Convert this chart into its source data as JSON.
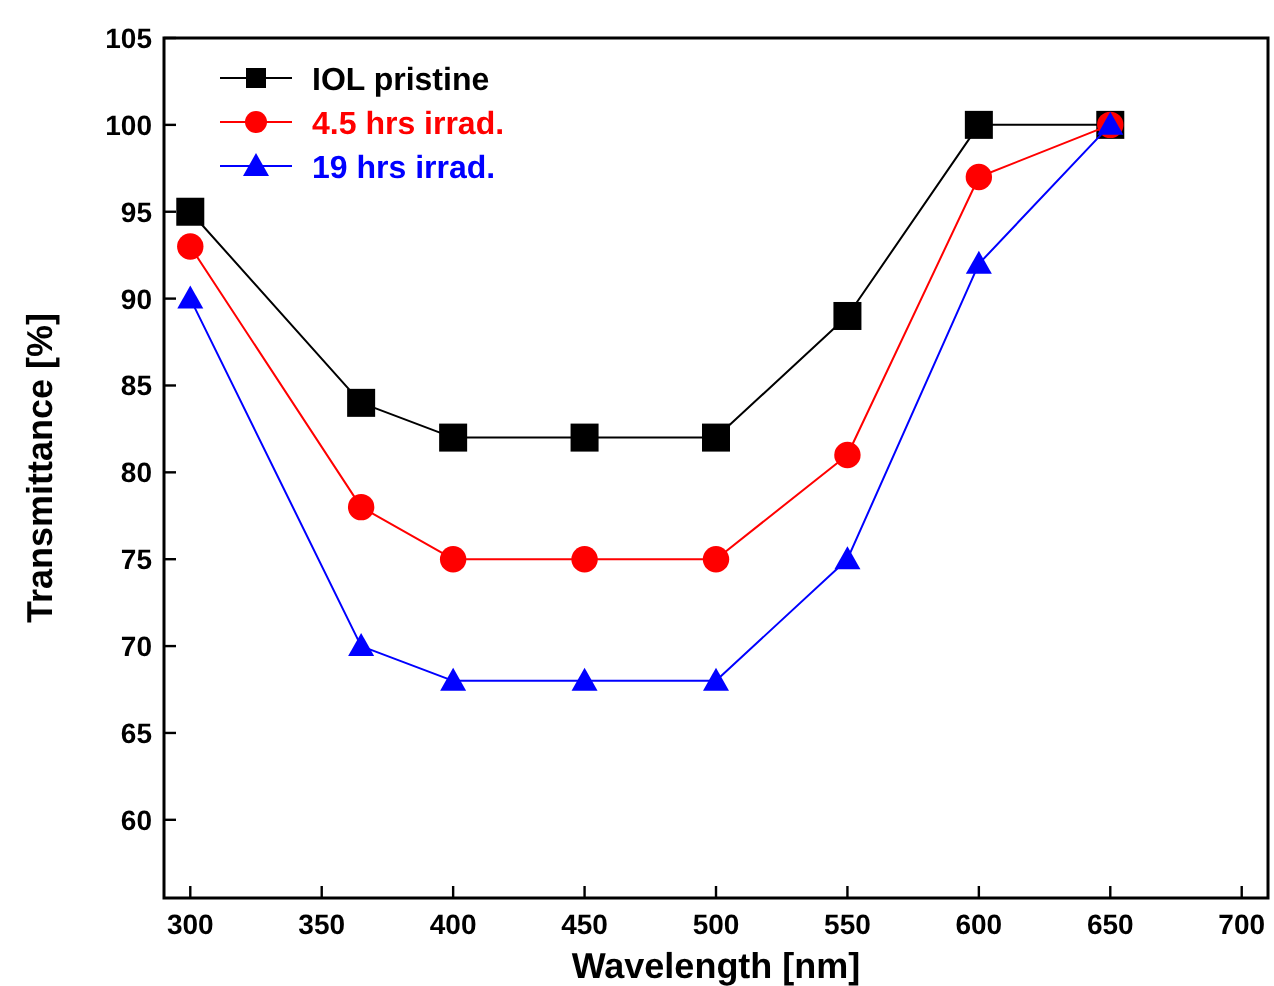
{
  "chart_data": {
    "type": "line",
    "xlabel": "Wavelength [nm]",
    "ylabel": "Transmittance [%]",
    "x": [
      300,
      365,
      400,
      450,
      500,
      550,
      600,
      650
    ],
    "series": [
      {
        "name": "IOL pristine",
        "color": "#000000",
        "marker": "square",
        "values": [
          95,
          84,
          82,
          82,
          82,
          89,
          100,
          100
        ]
      },
      {
        "name": "4.5 hrs irrad.",
        "color": "#ff0000",
        "marker": "circle",
        "values": [
          93,
          78,
          75,
          75,
          75,
          81,
          97,
          100
        ]
      },
      {
        "name": "19 hrs irrad.",
        "color": "#0000ff",
        "marker": "triangle",
        "values": [
          90,
          70,
          68,
          68,
          68,
          75,
          92,
          100
        ]
      }
    ],
    "xlim": [
      290,
      710
    ],
    "xticks": [
      300,
      350,
      400,
      450,
      500,
      550,
      600,
      650,
      700
    ],
    "ylim": [
      55.5,
      105
    ],
    "yticks": [
      60,
      65,
      70,
      75,
      80,
      85,
      90,
      95,
      100,
      105
    ],
    "grid": false,
    "legend": "top left",
    "line_style": "solid"
  }
}
